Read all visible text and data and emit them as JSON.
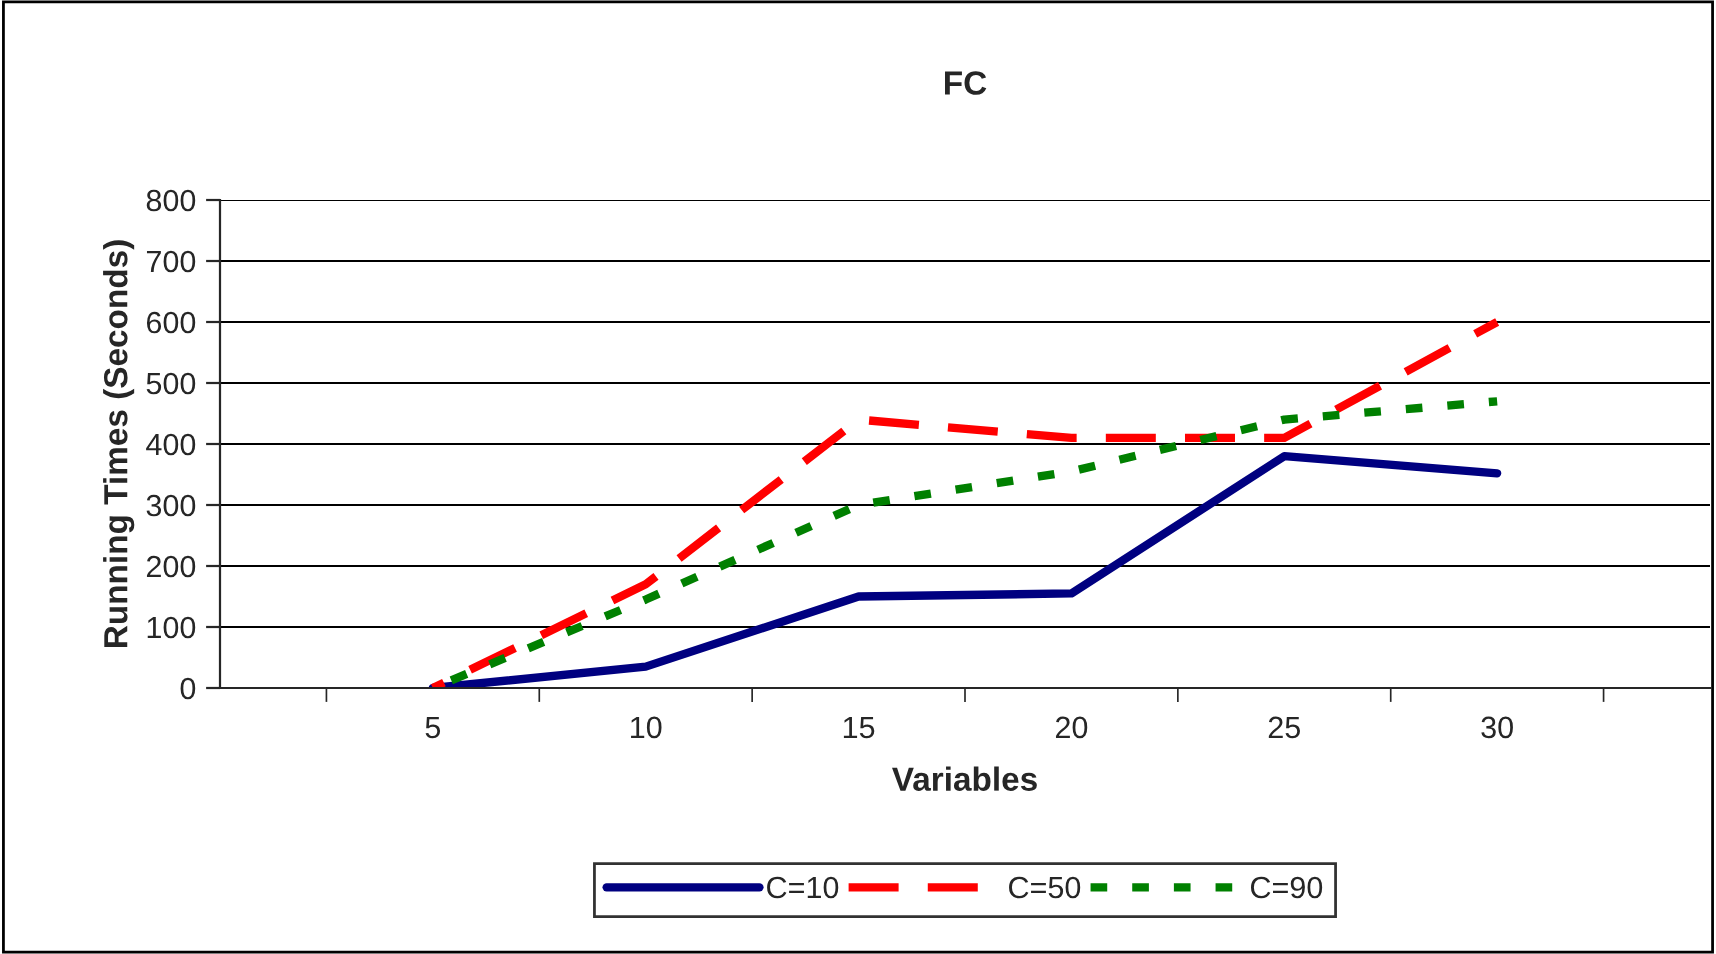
{
  "chart_data": {
    "type": "line",
    "title": "FC",
    "xlabel": "Variables",
    "ylabel": "Running Times (Seconds)",
    "categories": [
      "5",
      "10",
      "15",
      "20",
      "25",
      "30"
    ],
    "series": [
      {
        "name": "C=10",
        "color": "#000080",
        "line_style": "solid",
        "values": [
          0,
          35,
          150,
          155,
          380,
          352
        ]
      },
      {
        "name": "C=50",
        "color": "#ff0000",
        "line_style": "dashed",
        "values": [
          0,
          170,
          440,
          410,
          410,
          600
        ]
      },
      {
        "name": "C=90",
        "color": "#008000",
        "line_style": "dotted",
        "values": [
          0,
          145,
          300,
          355,
          440,
          470
        ]
      }
    ],
    "ylim": [
      0,
      800
    ],
    "yticks": [
      0,
      100,
      200,
      300,
      400,
      500,
      600,
      700,
      800
    ],
    "grid": "y",
    "legend": "bottom",
    "marker": "none"
  }
}
